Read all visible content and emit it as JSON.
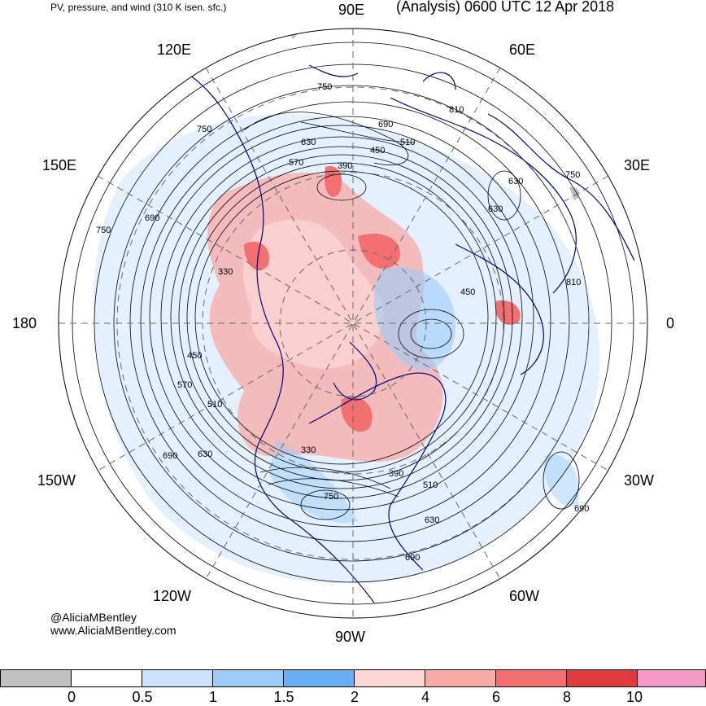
{
  "header": {
    "left_title": "PV, pressure, and wind (310 K isen. sfc.)",
    "right_title": "(Analysis) 0600 UTC 12 Apr 2018"
  },
  "map": {
    "projection": "north-polar-stereographic",
    "longitude_labels": {
      "top": "90E",
      "top_right": "60E",
      "right_upper": "30E",
      "right": "0",
      "right_lower": "30W",
      "bottom_right": "60W",
      "bottom": "90W",
      "bottom_left": "120W",
      "left_lower": "150W",
      "left": "180",
      "left_upper": "150E",
      "top_left": "120E"
    },
    "contour_labels": [
      "750",
      "810",
      "690",
      "630",
      "570",
      "450",
      "390",
      "510",
      "750",
      "690",
      "750",
      "330",
      "450",
      "570",
      "510",
      "690",
      "630",
      "330",
      "390",
      "510",
      "630",
      "750",
      "690",
      "690",
      "630",
      "810",
      "450",
      "750",
      "630"
    ],
    "colors": {
      "contour": "#000000",
      "coastline": "#000080",
      "grid": "#666666"
    }
  },
  "credits": {
    "handle": "@AliciaMBentley",
    "website": "www.AliciaMBentley.com"
  },
  "colorbar": {
    "ticks": [
      "0",
      "0.5",
      "1",
      "1.5",
      "2",
      "4",
      "6",
      "8",
      "10"
    ],
    "colors": [
      "#c0c0c0",
      "#ffffff",
      "#cde3fb",
      "#9dcbf8",
      "#6aaef5",
      "#fbd6d2",
      "#f8aaa6",
      "#f27072",
      "#e0393e",
      "#f398c7"
    ]
  }
}
